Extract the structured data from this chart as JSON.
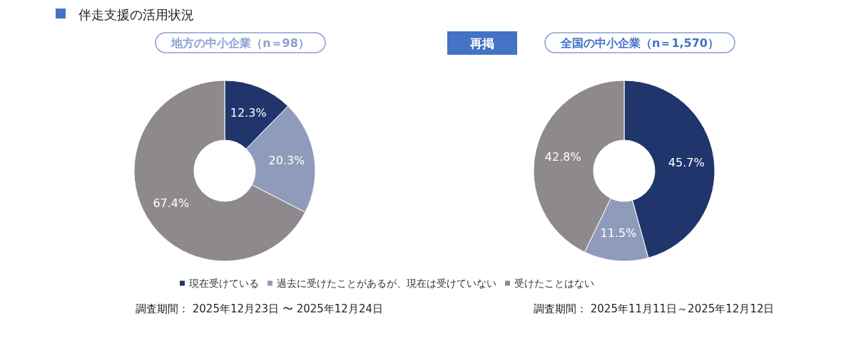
{
  "chart_data": [
    {
      "type": "donut",
      "title": "伴走支援の活用状況",
      "subtitle": "地方の中小企業（n＝98）",
      "categories": [
        "現在受けている",
        "過去に受けたことがあるが、現在は受けていない",
        "受けたことはない"
      ],
      "values": [
        12.3,
        20.3,
        67.4
      ],
      "value_labels": [
        "12.3%",
        "20.3%",
        "67.4%"
      ],
      "colors": [
        "#1f356b",
        "#8f9bba",
        "#8e898c"
      ],
      "legend": "bottom",
      "annotations": [
        "調査期間： 2025年12月23日 〜 2025年12月24日"
      ]
    },
    {
      "type": "donut",
      "subtitle": "全国の中小企業（n＝1,570）",
      "categories": [
        null,
        null,
        null
      ],
      "values": [
        45.7,
        11.5,
        42.8
      ],
      "value_labels": [
        "45.7%",
        "11.5%",
        "42.8%"
      ],
      "colors": [
        "#1f356b",
        "#8f9bba",
        "#8e898c"
      ],
      "annotations": [
        "再掲",
        "調査期間： 2025年11月11日～2025年12月12日"
      ]
    }
  ]
}
